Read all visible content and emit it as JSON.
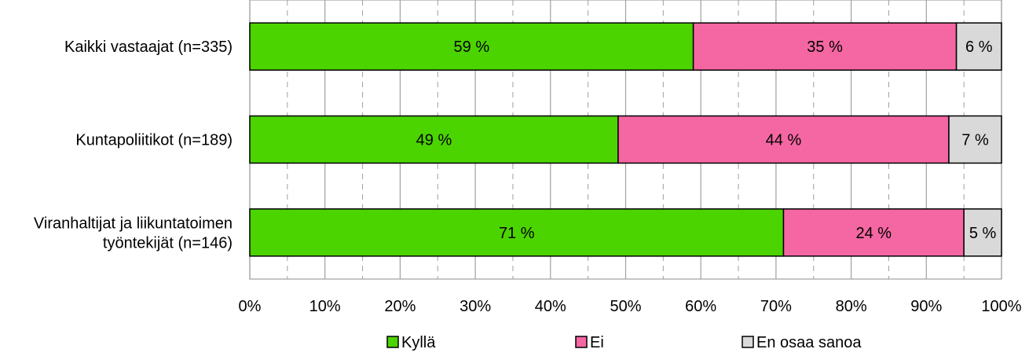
{
  "chart_data": {
    "type": "bar",
    "orientation": "horizontal",
    "stacked": true,
    "percent": true,
    "categories": [
      [
        "Kaikki vastaajat (n=335)"
      ],
      [
        "Kuntapoliitikot (n=189)"
      ],
      [
        "Viranhaltijat ja liikuntatoimen",
        "työntekijät (n=146)"
      ]
    ],
    "series": [
      {
        "name": "Kyllä",
        "values": [
          59,
          49,
          71
        ],
        "labels": [
          "59 %",
          "49 %",
          "71 %"
        ],
        "color": "#4cd400"
      },
      {
        "name": "Ei",
        "values": [
          35,
          44,
          24
        ],
        "labels": [
          "35 %",
          "44 %",
          "24 %"
        ],
        "color": "#f567a2"
      },
      {
        "name": "En osaa sanoa",
        "values": [
          6,
          7,
          5
        ],
        "labels": [
          "6 %",
          "7 %",
          "5 %"
        ],
        "color": "#d9d9d9"
      }
    ],
    "xlim": [
      0,
      100
    ],
    "xticks": [
      "0%",
      "10%",
      "20%",
      "30%",
      "40%",
      "50%",
      "60%",
      "70%",
      "80%",
      "90%",
      "100%"
    ],
    "grid": true,
    "legend_position": "bottom"
  }
}
